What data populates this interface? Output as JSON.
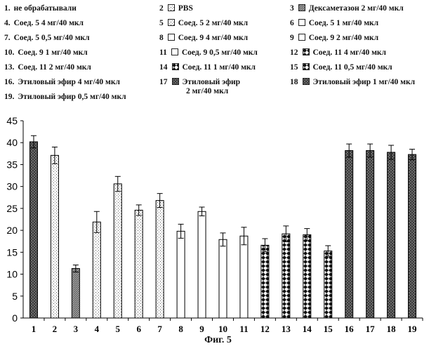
{
  "legend": [
    {
      "num": "1.",
      "label": "не обрабатывали",
      "pattern": "dark"
    },
    {
      "num": "2",
      "label": "PBS",
      "pattern": "dots"
    },
    {
      "num": "3",
      "label": "Дексаметазон 2 мг/40 мкл",
      "pattern": "gray"
    },
    {
      "num": "4.",
      "label": "Соед. 5 4 мг/40 мкл",
      "pattern": "dots"
    },
    {
      "num": "5",
      "label": "Соед. 5 2 мг/40 мкл",
      "pattern": "dots"
    },
    {
      "num": "6",
      "label": "Соед. 5 1 мг/40 мкл",
      "pattern": "white"
    },
    {
      "num": "7.",
      "label": "Соед. 5 0,5 мг/40 мкл",
      "pattern": "dots"
    },
    {
      "num": "8",
      "label": "Соед. 9 4 мг/40 мкл",
      "pattern": "white"
    },
    {
      "num": "9",
      "label": "Соед. 9 2 мг/40 мкл",
      "pattern": "white"
    },
    {
      "num": "10.",
      "label": "Соед. 9 1 мг/40 мкл",
      "pattern": "white"
    },
    {
      "num": "11",
      "label": "Соед. 9 0,5 мг/40 мкл",
      "pattern": "white"
    },
    {
      "num": "12",
      "label": "Соед. 11 4 мг/40 мкл",
      "pattern": "check"
    },
    {
      "num": "13.",
      "label": "Соед. 11 2 мг/40 мкл",
      "pattern": "check"
    },
    {
      "num": "14",
      "label": "Соед. 11 1 мг/40 мкл",
      "pattern": "check"
    },
    {
      "num": "15",
      "label": "Соед. 11 0,5 мг/40 мкл",
      "pattern": "check"
    },
    {
      "num": "16.",
      "label": "Этиловый эфир 4 мг/40 мкл",
      "pattern": "dark"
    },
    {
      "num": "17",
      "label": "Этиловый эфир",
      "label2": "2 мг/40 мкл",
      "pattern": "dark"
    },
    {
      "num": "18",
      "label": "Этиловый эфир 1 мг/40 мкл",
      "pattern": "dark"
    },
    {
      "num": "19.",
      "label": "Этиловый эфир 0,5 мг/40 мкл",
      "pattern": "dark"
    }
  ],
  "caption": "Фиг. 5",
  "chart_data": {
    "type": "bar",
    "categories": [
      "1",
      "2",
      "3",
      "4",
      "5",
      "6",
      "7",
      "8",
      "9",
      "10",
      "11",
      "12",
      "13",
      "14",
      "15",
      "16",
      "17",
      "18",
      "19"
    ],
    "values": [
      40.2,
      37.1,
      11.3,
      21.9,
      30.6,
      24.6,
      26.8,
      19.8,
      24.3,
      17.9,
      18.7,
      16.6,
      19.2,
      19.0,
      15.3,
      38.2,
      38.2,
      37.8,
      37.3
    ],
    "errors": [
      1.4,
      1.9,
      0.8,
      2.4,
      1.7,
      1.2,
      1.6,
      1.6,
      1.0,
      1.5,
      2.0,
      1.5,
      1.8,
      1.4,
      1.2,
      1.5,
      1.5,
      1.6,
      1.2
    ],
    "patterns": [
      "dark",
      "dots",
      "gray",
      "dots",
      "dots",
      "dots",
      "dots",
      "white",
      "white",
      "white",
      "white",
      "check",
      "check",
      "check",
      "check",
      "dark",
      "dark",
      "dark",
      "dark"
    ],
    "ylim": [
      0,
      45
    ],
    "yticks": [
      0,
      5,
      10,
      15,
      20,
      25,
      30,
      35,
      40,
      45
    ],
    "title": "",
    "xlabel": "",
    "ylabel": "",
    "grid": false,
    "legend_position": "top"
  }
}
